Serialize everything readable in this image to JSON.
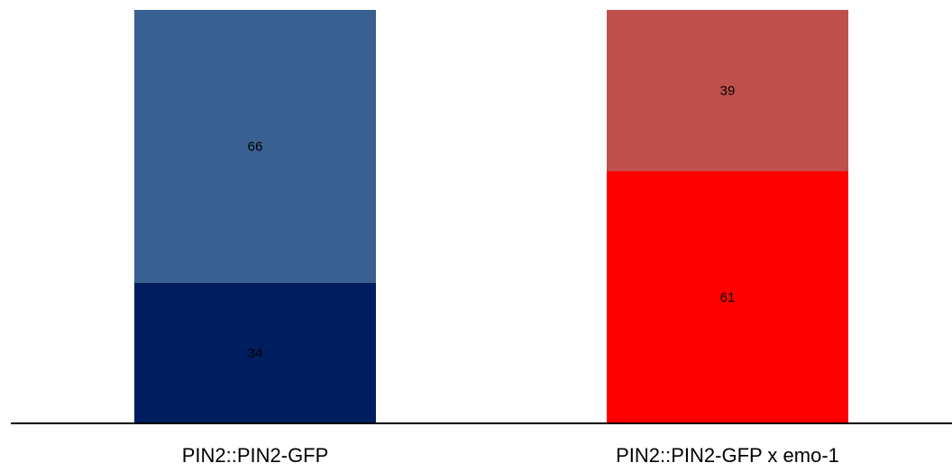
{
  "chart_data": {
    "type": "bar",
    "stacked": true,
    "categories": [
      "PIN2::PIN2-GFP",
      "PIN2::PIN2-GFP x emo-1"
    ],
    "stacks": [
      {
        "category": "PIN2::PIN2-GFP",
        "segments": [
          {
            "value": 34,
            "label": "34",
            "color": "#001E5F"
          },
          {
            "value": 66,
            "label": "66",
            "color": "#386192"
          }
        ]
      },
      {
        "category": "PIN2::PIN2-GFP x emo-1",
        "segments": [
          {
            "value": 61,
            "label": "61",
            "color": "#FF0000"
          },
          {
            "value": 39,
            "label": "39",
            "color": "#C0504D"
          }
        ]
      }
    ],
    "ylim": [
      0,
      100
    ],
    "grid": false,
    "legend": "none",
    "axis_color": "#000000"
  }
}
